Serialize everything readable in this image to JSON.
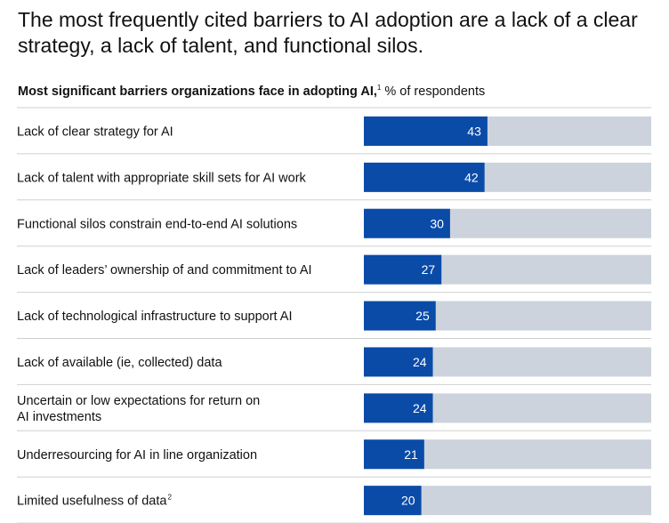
{
  "headline": "The most frequently cited barriers to AI adoption are a lack of a clear strategy, a lack of talent, and functional silos.",
  "subtitle": {
    "bold": "Most significant barriers organizations face in adopting AI,",
    "footnote_mark": "1",
    "unit": "% of respondents"
  },
  "colors": {
    "bar_fill": "#0a4ba8",
    "bar_track": "#ccd3dc",
    "divider": "#cfcfcf",
    "value_text": "#ffffff"
  },
  "chart_data": {
    "type": "bar",
    "orientation": "horizontal",
    "title": "Most significant barriers organizations face in adopting AI,",
    "unit": "% of respondents",
    "xlim": [
      0,
      100
    ],
    "grid": false,
    "categories": [
      {
        "lines": [
          "Lack of clear strategy for AI"
        ],
        "footnote": ""
      },
      {
        "lines": [
          "Lack of talent with appropriate skill sets for AI work"
        ],
        "footnote": ""
      },
      {
        "lines": [
          "Functional silos constrain end-to-end AI solutions"
        ],
        "footnote": ""
      },
      {
        "lines": [
          "Lack of leaders’ ownership of and commitment to AI"
        ],
        "footnote": ""
      },
      {
        "lines": [
          "Lack of technological infrastructure to support AI"
        ],
        "footnote": ""
      },
      {
        "lines": [
          "Lack of available (ie, collected) data"
        ],
        "footnote": ""
      },
      {
        "lines": [
          "Uncertain or low expectations for return on",
          "AI investments"
        ],
        "footnote": ""
      },
      {
        "lines": [
          "Underresourcing for AI in line organization"
        ],
        "footnote": ""
      },
      {
        "lines": [
          "Limited usefulness of data"
        ],
        "footnote": "2"
      }
    ],
    "values": [
      43,
      42,
      30,
      27,
      25,
      24,
      24,
      21,
      20
    ]
  }
}
